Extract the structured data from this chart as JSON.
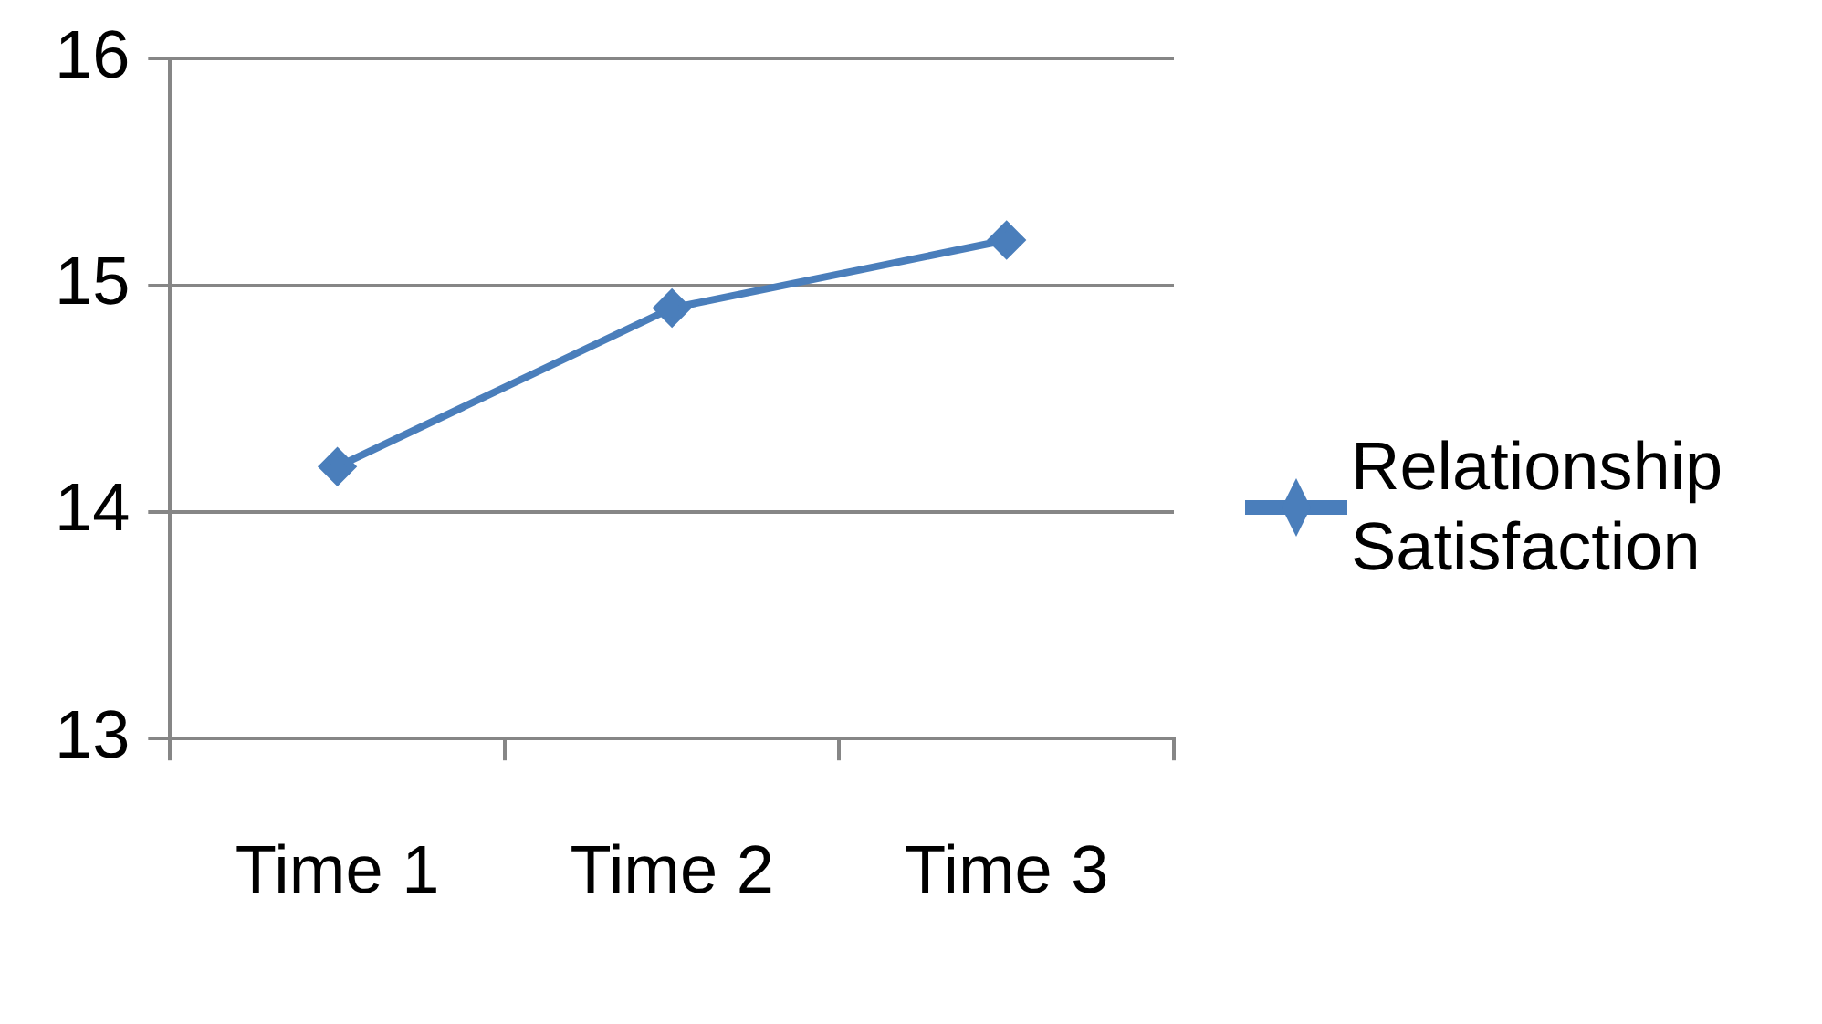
{
  "chart_data": {
    "type": "line",
    "categories": [
      "Time 1",
      "Time 2",
      "Time 3"
    ],
    "series": [
      {
        "name": "Relationship Satisfaction",
        "color": "#4a7ebb",
        "values": [
          14.2,
          14.9,
          15.2
        ]
      }
    ],
    "ylim": [
      13,
      16
    ],
    "yticks": [
      13,
      14,
      15,
      16
    ],
    "grid": "y",
    "legend": "right",
    "marker": "diamond",
    "line_style": "solid"
  }
}
